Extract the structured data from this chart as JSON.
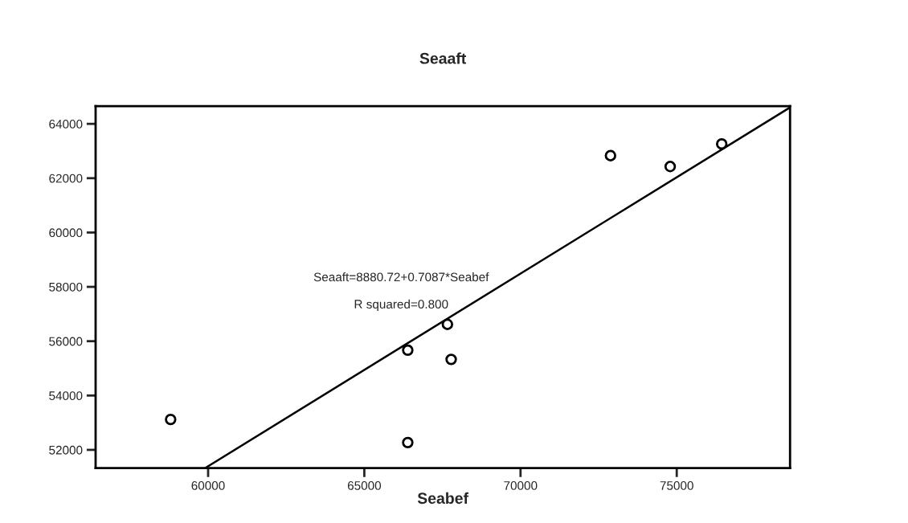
{
  "chart_data": {
    "type": "scatter",
    "title": "Seaaft",
    "xlabel": "Seabef",
    "xlim": [
      56399,
      78627
    ],
    "xticks": [
      60000,
      65000,
      70000,
      75000
    ],
    "ylim": [
      51329,
      64651
    ],
    "yticks": [
      52000,
      54000,
      56000,
      58000,
      60000,
      62000,
      64000
    ],
    "grid": false,
    "legend": false,
    "marker": "circle",
    "annotations": [
      "Seaaft=8880.72+0.7087*Seabef",
      "R squared=0.800"
    ],
    "series": [
      {
        "color": "#000000",
        "x": [
          58800,
          66390,
          66390,
          67660,
          67780,
          72880,
          74790,
          76440
        ],
        "values": [
          53120,
          52270,
          55670,
          56620,
          55330,
          62830,
          62430,
          63260
        ]
      },
      {
        "type": "line",
        "color": "#000000",
        "line_style": "solid",
        "marker": "none",
        "x": [
          59920,
          78620
        ],
        "values": [
          51340,
          64600
        ]
      }
    ]
  }
}
